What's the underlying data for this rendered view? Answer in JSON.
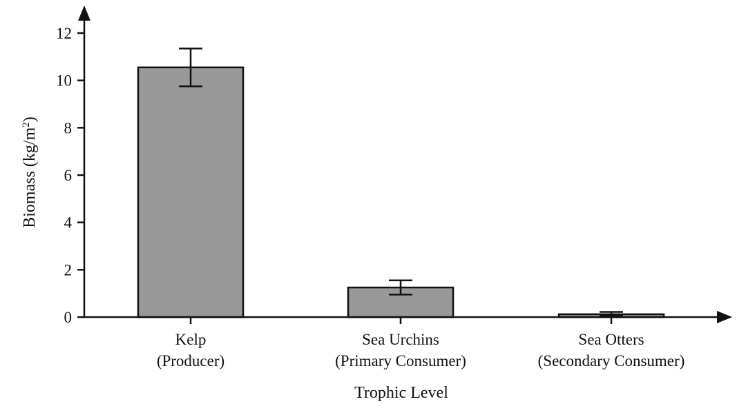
{
  "chart_data": {
    "type": "bar",
    "categories": [
      {
        "line1": "Kelp",
        "line2": "(Producer)"
      },
      {
        "line1": "Sea Urchins",
        "line2": "(Primary Consumer)"
      },
      {
        "line1": "Sea Otters",
        "line2": "(Secondary Consumer)"
      }
    ],
    "values": [
      10.55,
      1.25,
      0.12
    ],
    "error": [
      {
        "low": 9.75,
        "high": 11.35
      },
      {
        "low": 0.95,
        "high": 1.55
      },
      {
        "low": 0.05,
        "high": 0.22
      }
    ],
    "xlabel": "Trophic Level",
    "ylabel": {
      "main": "Biomass (kg/m",
      "sup": "2",
      "close": ")"
    },
    "ylim": [
      0,
      12
    ],
    "yticks": [
      "0",
      "2",
      "4",
      "6",
      "8",
      "10",
      "12"
    ],
    "grid": false,
    "bar_color": "#999999",
    "bar_edge_color": "#111111"
  }
}
